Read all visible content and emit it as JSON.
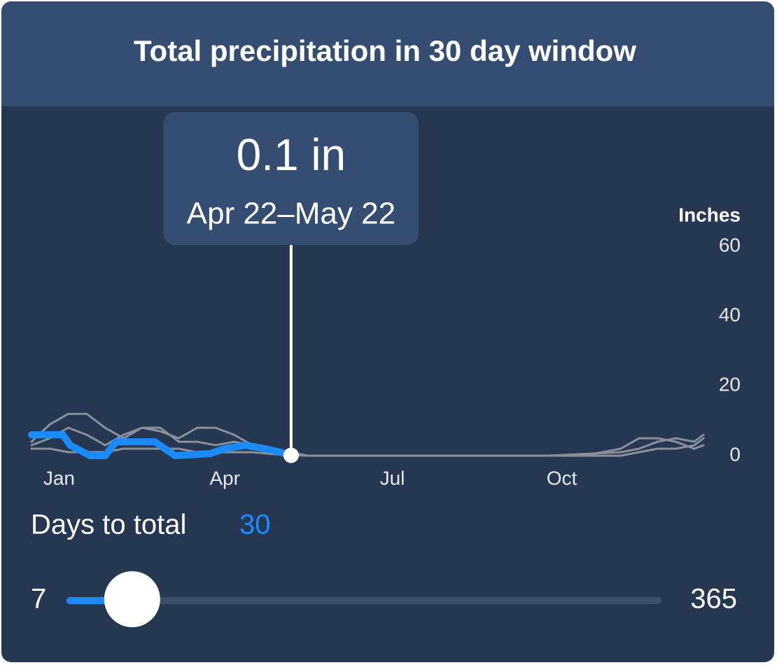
{
  "header": {
    "title": "Total precipitation in 30 day window"
  },
  "chart_data": {
    "type": "line",
    "y_label": "Inches",
    "xlim": [
      0,
      365
    ],
    "xticks": [
      {
        "value": 15,
        "label": "Jan"
      },
      {
        "value": 105,
        "label": "Apr"
      },
      {
        "value": 196,
        "label": "Jul"
      },
      {
        "value": 288,
        "label": "Oct"
      }
    ],
    "ylim": [
      0,
      60
    ],
    "yticks": [
      0,
      20,
      40,
      60
    ],
    "series": [
      {
        "color": "#8a9099",
        "x": [
          0,
          10,
          20,
          30,
          40,
          50,
          60,
          70,
          80,
          90,
          100,
          110,
          120,
          130,
          140,
          150,
          200,
          250,
          280,
          300,
          320,
          330,
          340,
          350,
          360,
          365
        ],
        "values": [
          4,
          9,
          12,
          12,
          8,
          5,
          8,
          8,
          4,
          4,
          3,
          4,
          3,
          2,
          1,
          0,
          0,
          0,
          0,
          0.5,
          1,
          2,
          4,
          5,
          4,
          6
        ]
      },
      {
        "color": "#8a9099",
        "x": [
          0,
          10,
          20,
          30,
          40,
          50,
          60,
          70,
          80,
          90,
          100,
          110,
          120,
          130,
          140,
          150,
          200,
          250,
          280,
          300,
          320,
          330,
          340,
          350,
          360,
          365
        ],
        "values": [
          3,
          5,
          8,
          6,
          3,
          6,
          8,
          7,
          5,
          8,
          8,
          6,
          3,
          2,
          1,
          0,
          0,
          0,
          0,
          0,
          2,
          5,
          5,
          4,
          2,
          3
        ]
      },
      {
        "color": "#8a9099",
        "x": [
          0,
          10,
          20,
          30,
          40,
          50,
          60,
          70,
          80,
          90,
          100,
          110,
          120,
          130,
          140,
          150,
          200,
          250,
          280,
          300,
          320,
          330,
          340,
          350,
          360,
          365
        ],
        "values": [
          2,
          2,
          1,
          1,
          1,
          2,
          2,
          2,
          2,
          1,
          1,
          1,
          1,
          0.5,
          0.2,
          0,
          0,
          0,
          0,
          0,
          0,
          1,
          2,
          2,
          3,
          5
        ]
      },
      {
        "color": "#1a8cff",
        "x": [
          0,
          17,
          21,
          32,
          40,
          46,
          67,
          78,
          97,
          105,
          116,
          127,
          135,
          141
        ],
        "values": [
          6,
          6,
          3,
          0,
          0,
          4,
          4,
          0,
          0.6,
          2,
          3,
          2,
          1,
          0.1
        ]
      }
    ]
  },
  "tooltip": {
    "value": "0.1 in",
    "range": "Apr 22–May 22"
  },
  "slider": {
    "label": "Days to total",
    "value": 30,
    "min": 7,
    "max": 365
  }
}
